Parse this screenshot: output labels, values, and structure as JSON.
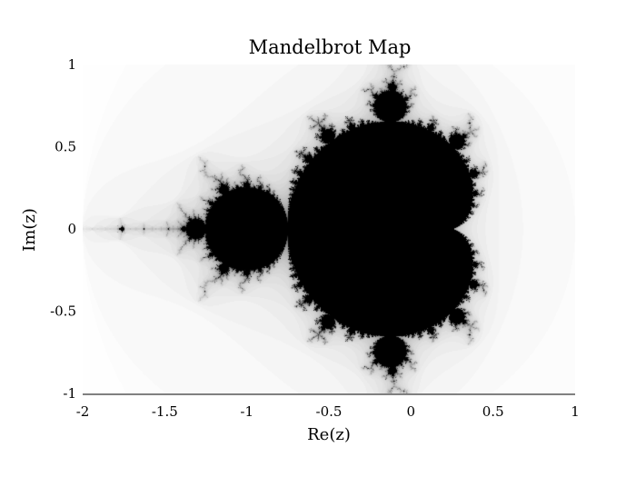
{
  "chart_data": {
    "type": "heatmap",
    "title": "Mandelbrot Map",
    "xlabel": "Re(z)",
    "ylabel": "Im(z)",
    "xlim": [
      -2,
      1
    ],
    "ylim": [
      -1,
      1
    ],
    "x_ticks": [
      -2,
      -1.5,
      -1,
      -0.5,
      0,
      0.5,
      1
    ],
    "x_tick_labels": [
      "-2",
      "-1.5",
      "-1",
      "-0.5",
      "0",
      "0.5",
      "1"
    ],
    "y_ticks": [
      -1,
      -0.5,
      0,
      0.5,
      1
    ],
    "y_tick_labels": [
      "-1",
      "-0.5",
      "0",
      "0.5",
      "1"
    ],
    "colormap": "greys",
    "colors": {
      "set_interior": "#000000",
      "background": "#ffffff",
      "axis": "#000000"
    },
    "iteration_limit": 80,
    "grid": false,
    "legend": "none"
  }
}
